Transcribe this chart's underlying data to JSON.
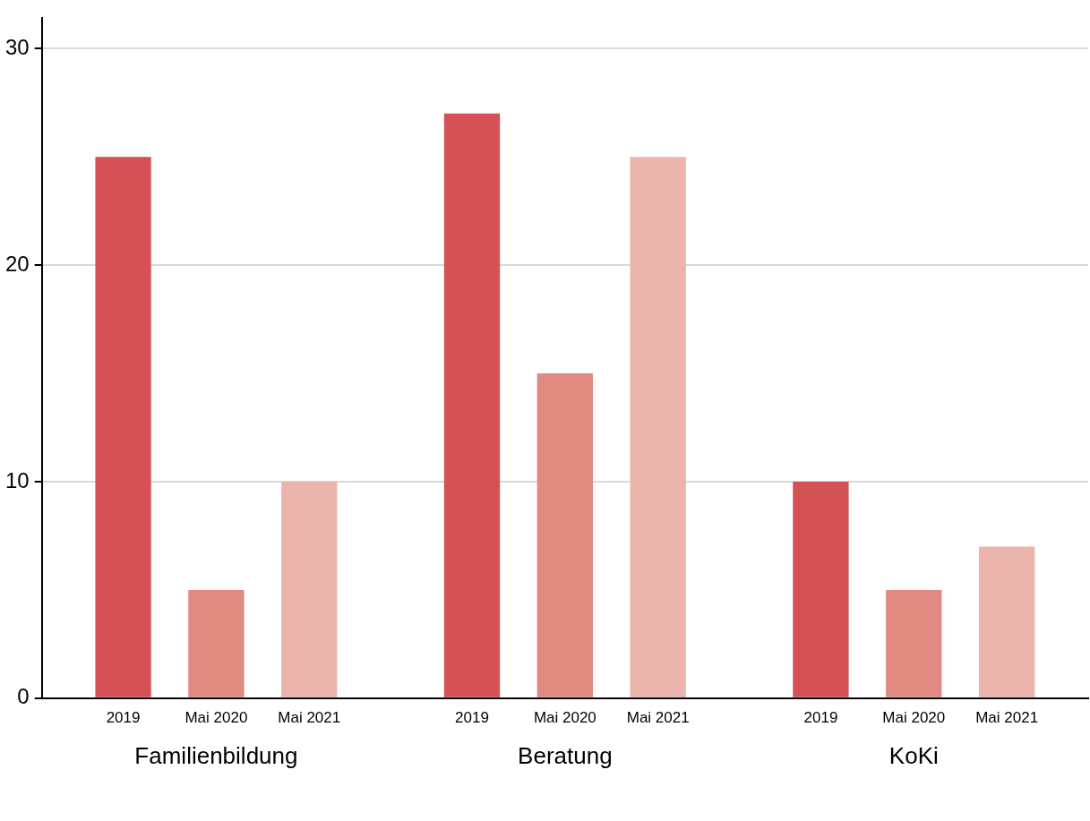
{
  "chart_data": {
    "type": "bar",
    "categories": [
      "Familienbildung",
      "Beratung",
      "KoKi"
    ],
    "series": [
      {
        "name": "2019",
        "color": "#d45156",
        "values": [
          25,
          27,
          10
        ]
      },
      {
        "name": "Mai 2020",
        "color": "#e08a82",
        "values": [
          5,
          15,
          5
        ]
      },
      {
        "name": "Mai 2021",
        "color": "#ebb4ad",
        "values": [
          10,
          25,
          7
        ]
      }
    ],
    "ylim": [
      0,
      31.4
    ],
    "yticks": [
      0,
      10,
      20,
      30
    ],
    "grid": "y",
    "legend": false
  }
}
